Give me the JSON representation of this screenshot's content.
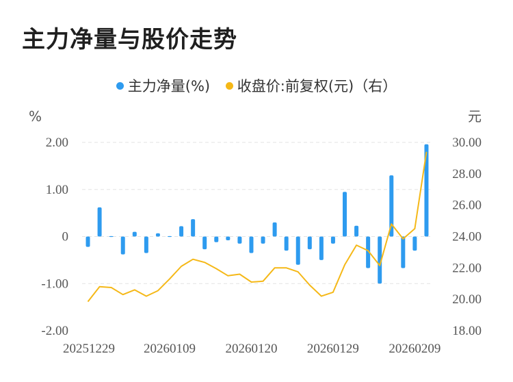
{
  "title": "主力净量与股价走势",
  "legend": [
    {
      "label": "主力净量(%)",
      "color": "#2e9bef"
    },
    {
      "label": "收盘价:前复权(元)（右）",
      "color": "#f5b817"
    }
  ],
  "left_unit": "%",
  "right_unit": "元",
  "chart_data": {
    "type": "bar+line",
    "left_axis": {
      "ticks": [
        "2.00",
        "1.00",
        "0",
        "-1.00",
        "-2.00"
      ],
      "ylim": [
        -2,
        2
      ]
    },
    "right_axis": {
      "ticks": [
        "30.00",
        "28.00",
        "26.00",
        "24.00",
        "22.00",
        "20.00",
        "18.00"
      ],
      "ylim": [
        18,
        30
      ]
    },
    "x_tick_labels": [
      "20251229",
      "20260109",
      "20260120",
      "20260129",
      "20260209"
    ],
    "x_tick_index": [
      0,
      7,
      14,
      21,
      28
    ],
    "series": [
      {
        "name": "主力净量(%)",
        "type": "bar",
        "color": "#2e9bef",
        "values": [
          -0.22,
          0.62,
          0.0,
          -0.38,
          0.1,
          -0.35,
          0.07,
          0.0,
          0.22,
          0.37,
          -0.27,
          -0.12,
          -0.08,
          -0.15,
          -0.35,
          -0.15,
          0.3,
          -0.3,
          -0.6,
          -0.27,
          -0.5,
          -0.15,
          0.95,
          0.23,
          -0.67,
          -1.0,
          1.3,
          -0.67,
          -0.3,
          1.96
        ]
      },
      {
        "name": "收盘价:前复权(元)（右）",
        "type": "line",
        "color": "#f5b817",
        "values": [
          19.85,
          20.8,
          20.75,
          20.3,
          20.6,
          20.2,
          20.55,
          21.3,
          22.1,
          22.55,
          22.35,
          21.95,
          21.5,
          21.6,
          21.1,
          21.15,
          22.0,
          22.0,
          21.75,
          20.9,
          20.2,
          20.45,
          22.2,
          23.45,
          23.1,
          22.15,
          24.8,
          23.85,
          24.5,
          29.4
        ]
      }
    ]
  }
}
